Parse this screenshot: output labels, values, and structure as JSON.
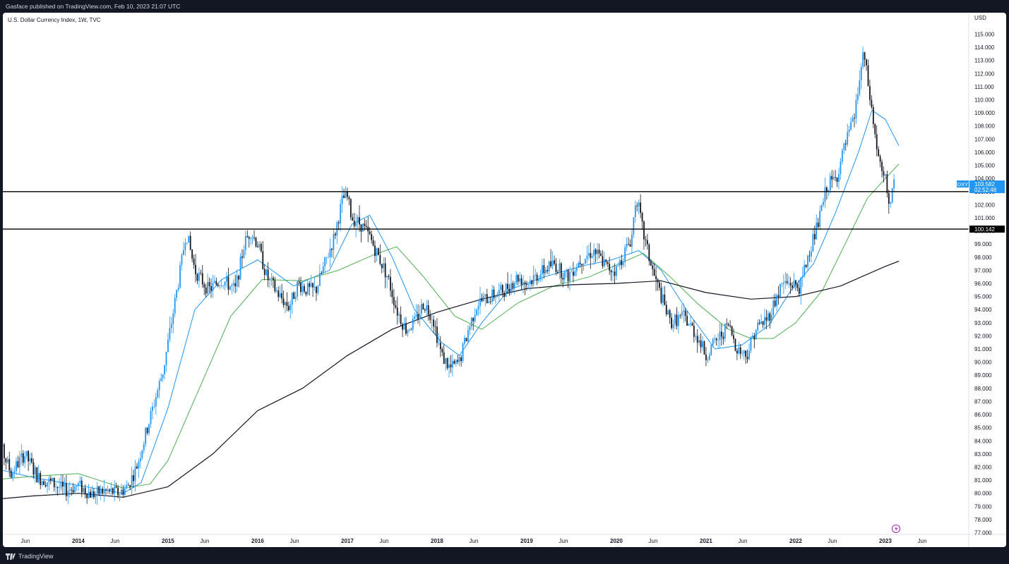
{
  "header": {
    "publisher": "Gasface published on TradingView.com, Feb 10, 2023 21:07 UTC"
  },
  "footer": {
    "brand": "TradingView"
  },
  "chart_data": {
    "type": "candlestick",
    "title": "U.S. Dollar Currency Index, 1W, TVC",
    "currency_label": "USD",
    "symbol": "DXY",
    "last_price": "103.582",
    "countdown": "02:52:48",
    "level_label": "100.142",
    "y_axis": {
      "min": 77,
      "max": 115,
      "ticks": [
        77,
        78,
        79,
        80,
        81,
        82,
        83,
        84,
        85,
        86,
        87,
        88,
        89,
        90,
        91,
        92,
        93,
        94,
        95,
        96,
        97,
        98,
        99,
        100,
        101,
        102,
        103,
        104,
        105,
        106,
        107,
        108,
        109,
        110,
        111,
        112,
        113,
        114,
        115
      ]
    },
    "x_ticks": [
      {
        "label": "Jun",
        "t": 2013.41
      },
      {
        "label": "2014",
        "t": 2014.0
      },
      {
        "label": "Jun",
        "t": 2014.41
      },
      {
        "label": "2015",
        "t": 2015.0
      },
      {
        "label": "Jun",
        "t": 2015.41
      },
      {
        "label": "2016",
        "t": 2016.0
      },
      {
        "label": "Jun",
        "t": 2016.41
      },
      {
        "label": "2017",
        "t": 2017.0
      },
      {
        "label": "Jun",
        "t": 2017.41
      },
      {
        "label": "2018",
        "t": 2018.0
      },
      {
        "label": "Jun",
        "t": 2018.41
      },
      {
        "label": "2019",
        "t": 2019.0
      },
      {
        "label": "Jun",
        "t": 2019.41
      },
      {
        "label": "2020",
        "t": 2020.0
      },
      {
        "label": "Jun",
        "t": 2020.41
      },
      {
        "label": "2021",
        "t": 2021.0
      },
      {
        "label": "Jun",
        "t": 2021.41
      },
      {
        "label": "2022",
        "t": 2022.0
      },
      {
        "label": "Jun",
        "t": 2022.41
      },
      {
        "label": "2023",
        "t": 2023.0
      },
      {
        "label": "Jun",
        "t": 2023.41
      }
    ],
    "horizontal_levels": [
      103.0,
      100.142
    ],
    "price_path": [
      [
        2013.0,
        82.2
      ],
      [
        2013.12,
        83.8
      ],
      [
        2013.25,
        81.5
      ],
      [
        2013.4,
        83.0
      ],
      [
        2013.55,
        81.2
      ],
      [
        2013.7,
        80.8
      ],
      [
        2013.85,
        80.2
      ],
      [
        2014.0,
        80.6
      ],
      [
        2014.15,
        79.9
      ],
      [
        2014.3,
        80.2
      ],
      [
        2014.45,
        80.0
      ],
      [
        2014.55,
        80.5
      ],
      [
        2014.65,
        82.0
      ],
      [
        2014.75,
        84.5
      ],
      [
        2014.85,
        87.0
      ],
      [
        2014.95,
        89.5
      ],
      [
        2015.05,
        93.5
      ],
      [
        2015.15,
        97.5
      ],
      [
        2015.2,
        100.0
      ],
      [
        2015.3,
        97.0
      ],
      [
        2015.45,
        95.5
      ],
      [
        2015.6,
        96.3
      ],
      [
        2015.75,
        95.5
      ],
      [
        2015.85,
        99.0
      ],
      [
        2015.92,
        100.0
      ],
      [
        2016.0,
        99.0
      ],
      [
        2016.1,
        96.5
      ],
      [
        2016.25,
        95.0
      ],
      [
        2016.35,
        94.2
      ],
      [
        2016.45,
        96.0
      ],
      [
        2016.55,
        95.5
      ],
      [
        2016.65,
        95.5
      ],
      [
        2016.75,
        97.5
      ],
      [
        2016.85,
        99.5
      ],
      [
        2016.95,
        102.5
      ],
      [
        2017.0,
        102.5
      ],
      [
        2017.05,
        101.0
      ],
      [
        2017.15,
        100.5
      ],
      [
        2017.25,
        99.5
      ],
      [
        2017.35,
        98.0
      ],
      [
        2017.45,
        96.5
      ],
      [
        2017.55,
        94.0
      ],
      [
        2017.65,
        92.5
      ],
      [
        2017.75,
        93.0
      ],
      [
        2017.85,
        94.5
      ],
      [
        2017.95,
        93.5
      ],
      [
        2018.05,
        90.5
      ],
      [
        2018.15,
        89.5
      ],
      [
        2018.25,
        90.0
      ],
      [
        2018.35,
        92.5
      ],
      [
        2018.45,
        94.5
      ],
      [
        2018.6,
        95.0
      ],
      [
        2018.75,
        95.5
      ],
      [
        2018.9,
        96.5
      ],
      [
        2019.0,
        96.0
      ],
      [
        2019.15,
        96.8
      ],
      [
        2019.3,
        97.5
      ],
      [
        2019.45,
        96.5
      ],
      [
        2019.6,
        97.8
      ],
      [
        2019.75,
        98.5
      ],
      [
        2019.9,
        97.2
      ],
      [
        2020.0,
        97.0
      ],
      [
        2020.1,
        98.5
      ],
      [
        2020.17,
        99.5
      ],
      [
        2020.22,
        102.8
      ],
      [
        2020.3,
        99.8
      ],
      [
        2020.4,
        97.0
      ],
      [
        2020.5,
        95.0
      ],
      [
        2020.6,
        93.0
      ],
      [
        2020.75,
        93.5
      ],
      [
        2020.9,
        92.0
      ],
      [
        2021.0,
        90.5
      ],
      [
        2021.1,
        91.5
      ],
      [
        2021.25,
        92.8
      ],
      [
        2021.35,
        91.0
      ],
      [
        2021.45,
        90.5
      ],
      [
        2021.55,
        92.5
      ],
      [
        2021.7,
        93.5
      ],
      [
        2021.85,
        96.0
      ],
      [
        2021.95,
        96.0
      ],
      [
        2022.05,
        95.7
      ],
      [
        2022.15,
        98.5
      ],
      [
        2022.25,
        100.5
      ],
      [
        2022.35,
        103.5
      ],
      [
        2022.45,
        104.0
      ],
      [
        2022.55,
        106.5
      ],
      [
        2022.65,
        108.5
      ],
      [
        2022.72,
        112.0
      ],
      [
        2022.76,
        113.5
      ],
      [
        2022.8,
        111.5
      ],
      [
        2022.85,
        109.0
      ],
      [
        2022.9,
        106.5
      ],
      [
        2022.95,
        104.5
      ],
      [
        2023.0,
        103.8
      ],
      [
        2023.05,
        102.0
      ],
      [
        2023.1,
        103.58
      ]
    ],
    "moving_averages": [
      {
        "color": "#2196f3",
        "path": [
          [
            2013.0,
            82.0
          ],
          [
            2013.5,
            81.2
          ],
          [
            2014.0,
            80.6
          ],
          [
            2014.5,
            80.0
          ],
          [
            2014.7,
            80.8
          ],
          [
            2015.0,
            86.5
          ],
          [
            2015.3,
            94.0
          ],
          [
            2015.6,
            96.3
          ],
          [
            2016.0,
            97.8
          ],
          [
            2016.4,
            95.8
          ],
          [
            2016.8,
            97.0
          ],
          [
            2017.05,
            100.5
          ],
          [
            2017.25,
            101.2
          ],
          [
            2017.5,
            98.0
          ],
          [
            2017.75,
            94.0
          ],
          [
            2018.05,
            91.5
          ],
          [
            2018.25,
            90.5
          ],
          [
            2018.5,
            93.0
          ],
          [
            2018.8,
            95.5
          ],
          [
            2019.2,
            96.5
          ],
          [
            2019.6,
            97.3
          ],
          [
            2019.95,
            97.8
          ],
          [
            2020.25,
            98.5
          ],
          [
            2020.5,
            97.0
          ],
          [
            2020.8,
            93.8
          ],
          [
            2021.1,
            91.0
          ],
          [
            2021.4,
            91.3
          ],
          [
            2021.7,
            92.8
          ],
          [
            2021.95,
            95.5
          ],
          [
            2022.2,
            97.5
          ],
          [
            2022.45,
            101.5
          ],
          [
            2022.7,
            106.0
          ],
          [
            2022.85,
            109.2
          ],
          [
            2023.0,
            108.5
          ],
          [
            2023.15,
            106.5
          ]
        ]
      },
      {
        "color": "#4caf50",
        "path": [
          [
            2013.0,
            81.0
          ],
          [
            2013.5,
            81.3
          ],
          [
            2014.0,
            81.5
          ],
          [
            2014.5,
            80.4
          ],
          [
            2014.8,
            80.7
          ],
          [
            2015.0,
            82.5
          ],
          [
            2015.35,
            88.0
          ],
          [
            2015.7,
            93.5
          ],
          [
            2016.05,
            96.3
          ],
          [
            2016.5,
            96.2
          ],
          [
            2016.9,
            97.0
          ],
          [
            2017.3,
            98.2
          ],
          [
            2017.55,
            98.8
          ],
          [
            2017.85,
            96.5
          ],
          [
            2018.2,
            93.5
          ],
          [
            2018.5,
            92.5
          ],
          [
            2018.9,
            94.5
          ],
          [
            2019.3,
            95.8
          ],
          [
            2019.7,
            96.5
          ],
          [
            2020.1,
            97.7
          ],
          [
            2020.3,
            98.3
          ],
          [
            2020.6,
            96.5
          ],
          [
            2020.9,
            94.5
          ],
          [
            2021.25,
            92.5
          ],
          [
            2021.5,
            91.8
          ],
          [
            2021.75,
            91.8
          ],
          [
            2022.0,
            93.0
          ],
          [
            2022.3,
            95.5
          ],
          [
            2022.55,
            99.0
          ],
          [
            2022.8,
            102.5
          ],
          [
            2023.0,
            104.0
          ],
          [
            2023.15,
            105.1
          ]
        ]
      },
      {
        "color": "#131722",
        "path": [
          [
            2013.0,
            79.5
          ],
          [
            2013.5,
            79.8
          ],
          [
            2014.0,
            80.0
          ],
          [
            2014.5,
            79.7
          ],
          [
            2015.0,
            80.5
          ],
          [
            2015.5,
            83.0
          ],
          [
            2016.0,
            86.3
          ],
          [
            2016.5,
            88.0
          ],
          [
            2017.0,
            90.5
          ],
          [
            2017.5,
            92.5
          ],
          [
            2018.0,
            93.8
          ],
          [
            2018.5,
            94.8
          ],
          [
            2019.0,
            95.6
          ],
          [
            2019.5,
            95.9
          ],
          [
            2020.0,
            96.0
          ],
          [
            2020.5,
            96.2
          ],
          [
            2021.0,
            95.3
          ],
          [
            2021.5,
            94.8
          ],
          [
            2022.0,
            95.0
          ],
          [
            2022.5,
            95.8
          ],
          [
            2023.0,
            97.3
          ],
          [
            2023.15,
            97.7
          ]
        ]
      }
    ]
  }
}
